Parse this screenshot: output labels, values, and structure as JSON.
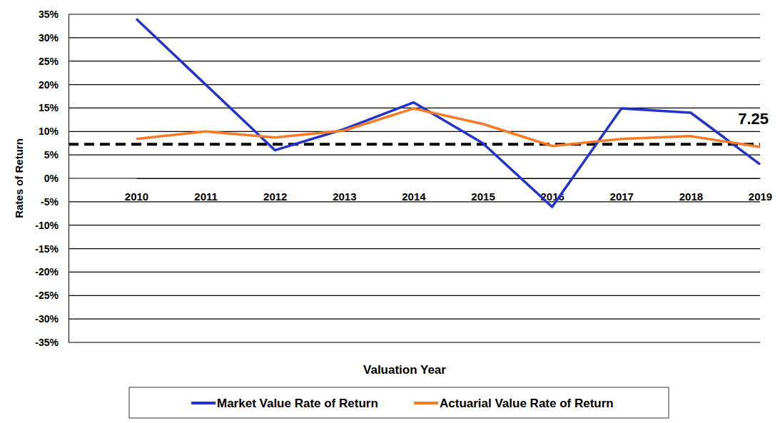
{
  "chart_data": {
    "type": "line",
    "x_label": "Valuation Year",
    "y_label": "Rates of Return",
    "categories": [
      "2010",
      "2011",
      "2012",
      "2013",
      "2014",
      "2015",
      "2016",
      "2017",
      "2018",
      "2019"
    ],
    "series": [
      {
        "name": "Market Value Rate of Return",
        "color": "#2233cc",
        "values": [
          34,
          20,
          6,
          10.5,
          16.2,
          7.5,
          -6.1,
          14.9,
          14.0,
          3.0
        ]
      },
      {
        "name": "Actuarial Value Rate of Return",
        "color": "#f97a26",
        "values": [
          8.4,
          10.0,
          8.7,
          10.2,
          14.9,
          11.6,
          6.9,
          8.4,
          9.0,
          6.7
        ]
      }
    ],
    "reference_line": {
      "value": 7.25,
      "label": "7.25",
      "color": "#000000",
      "line_style": "dashed"
    },
    "ylim": [
      -35,
      35
    ],
    "yticks": [
      {
        "value": -35,
        "label": "-35%"
      },
      {
        "value": -30,
        "label": "-30%"
      },
      {
        "value": -25,
        "label": "-25%"
      },
      {
        "value": -20,
        "label": "-20%"
      },
      {
        "value": -15,
        "label": "-15%"
      },
      {
        "value": -10,
        "label": "-10%"
      },
      {
        "value": -5,
        "label": "-5%"
      },
      {
        "value": 0,
        "label": "0%"
      },
      {
        "value": 5,
        "label": "5%"
      },
      {
        "value": 10,
        "label": "10%"
      },
      {
        "value": 15,
        "label": "15%"
      },
      {
        "value": 20,
        "label": "20%"
      },
      {
        "value": 25,
        "label": "25%"
      },
      {
        "value": 30,
        "label": "30%"
      },
      {
        "value": 35,
        "label": "35%"
      }
    ],
    "grid": true,
    "legend": "bottom"
  }
}
